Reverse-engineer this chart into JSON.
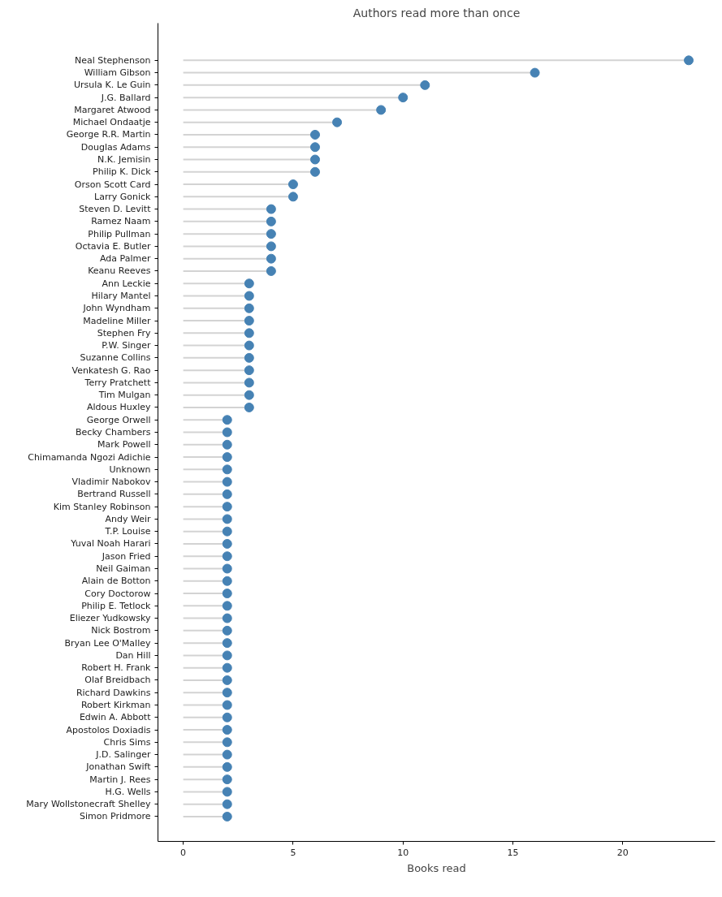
{
  "chart_data": {
    "type": "lollipop",
    "title": "Authors read more than once",
    "xlabel": "Books read",
    "orientation": "horizontal",
    "categories": [
      "Neal Stephenson",
      "William Gibson",
      "Ursula K. Le Guin",
      "J.G. Ballard",
      "Margaret Atwood",
      "Michael Ondaatje",
      "George R.R. Martin",
      "Douglas Adams",
      "N.K. Jemisin",
      "Philip K. Dick",
      "Orson Scott Card",
      "Larry Gonick",
      "Steven D. Levitt",
      "Ramez Naam",
      "Philip Pullman",
      "Octavia E. Butler",
      "Ada Palmer",
      "Keanu Reeves",
      "Ann Leckie",
      "Hilary Mantel",
      "John Wyndham",
      "Madeline Miller",
      "Stephen Fry",
      "P.W. Singer",
      "Suzanne Collins",
      "Venkatesh G. Rao",
      "Terry Pratchett",
      "Tim Mulgan",
      "Aldous Huxley",
      "George Orwell",
      "Becky Chambers",
      "Mark Powell",
      "Chimamanda Ngozi Adichie",
      "Unknown",
      "Vladimir Nabokov",
      "Bertrand Russell",
      "Kim Stanley Robinson",
      "Andy Weir",
      "T.P. Louise",
      "Yuval Noah Harari",
      "Jason Fried",
      "Neil Gaiman",
      "Alain de Botton",
      "Cory Doctorow",
      "Philip E. Tetlock",
      "Eliezer Yudkowsky",
      "Nick Bostrom",
      "Bryan Lee O'Malley",
      "Dan Hill",
      "Robert H. Frank",
      "Olaf Breidbach",
      "Richard Dawkins",
      "Robert Kirkman",
      "Edwin A. Abbott",
      "Apostolos Doxiadis",
      "Chris Sims",
      "J.D. Salinger",
      "Jonathan Swift",
      "Martin J. Rees",
      "H.G. Wells",
      "Mary Wollstonecraft Shelley",
      "Simon Pridmore"
    ],
    "values": [
      23,
      16,
      11,
      10,
      9,
      7,
      6,
      6,
      6,
      6,
      5,
      5,
      4,
      4,
      4,
      4,
      4,
      4,
      3,
      3,
      3,
      3,
      3,
      3,
      3,
      3,
      3,
      3,
      3,
      2,
      2,
      2,
      2,
      2,
      2,
      2,
      2,
      2,
      2,
      2,
      2,
      2,
      2,
      2,
      2,
      2,
      2,
      2,
      2,
      2,
      2,
      2,
      2,
      2,
      2,
      2,
      2,
      2,
      2,
      2,
      2,
      2
    ],
    "color": "#4682b4",
    "xlim": [
      -1.15,
      24.2
    ],
    "xticks": [
      0,
      5,
      10,
      15,
      20
    ],
    "grid": false,
    "marker": "circle"
  }
}
